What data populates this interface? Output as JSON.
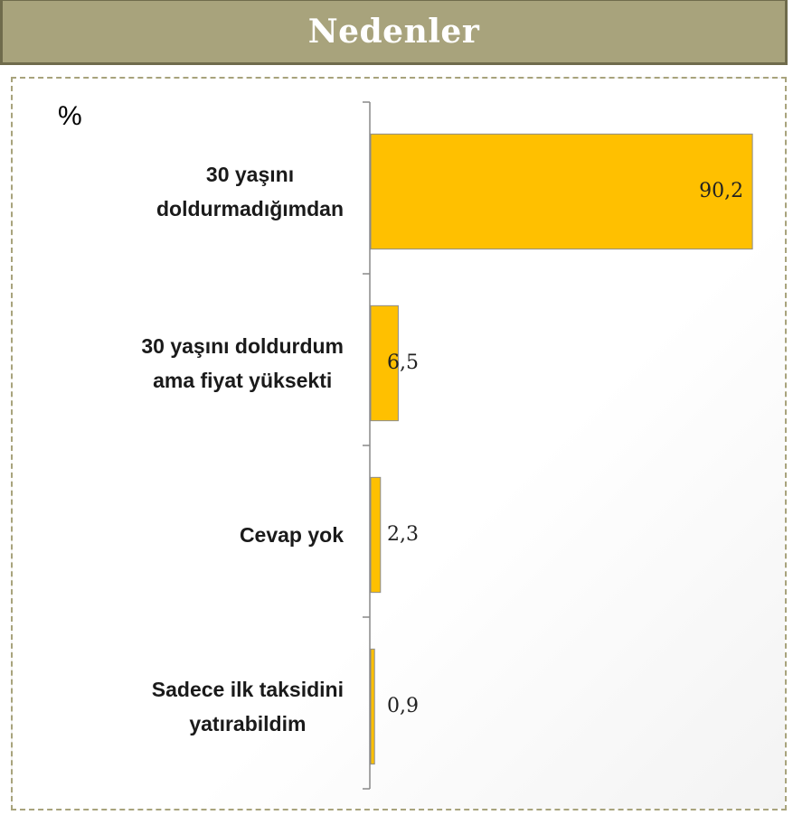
{
  "chart_data": {
    "type": "bar",
    "orientation": "horizontal",
    "title": "Nedenler",
    "unit_label": "%",
    "categories": [
      "30 yaşını\ndoldurmadığımdan",
      "30 yaşını doldurdum\nama fiyat yüksekti",
      "Cevap yok",
      "Sadece ilk taksidini\nyatırabildim"
    ],
    "values": [
      90.2,
      6.5,
      2.3,
      0.9
    ],
    "value_labels": [
      "90,2",
      "6,5",
      "2,3",
      "0,9"
    ],
    "color": "#ffc000",
    "xlim": [
      0,
      100
    ]
  }
}
